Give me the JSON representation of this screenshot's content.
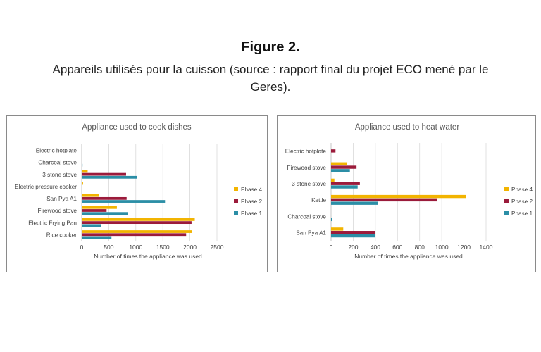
{
  "figure": {
    "title": "Figure 2.",
    "caption": "Appareils utilisés pour la cuisson (source : rapport final du projet ECO mené par le Geres)."
  },
  "colors": {
    "Phase 4": "#f2b400",
    "Phase 2": "#9b1b3b",
    "Phase 1": "#2b8ea6"
  },
  "chart_data": [
    {
      "type": "bar",
      "orientation": "horizontal",
      "title": "Appliance used to cook dishes",
      "xlabel": "Number of times the appliance was used",
      "ylabel": "",
      "categories": [
        "Electric hotplate",
        "Charcoal stove",
        "3 stone stove",
        "Electric pressure cooker",
        "San Pya A1",
        "Firewood stove",
        "Electric Frying Pan",
        "Rice cooker"
      ],
      "series": [
        {
          "name": "Phase 4",
          "values": [
            0,
            0,
            110,
            25,
            320,
            650,
            2090,
            2040
          ]
        },
        {
          "name": "Phase 2",
          "values": [
            0,
            5,
            820,
            0,
            830,
            460,
            2030,
            1930
          ]
        },
        {
          "name": "Phase 1",
          "values": [
            0,
            15,
            1020,
            0,
            1540,
            850,
            360,
            550
          ]
        }
      ],
      "xlim": [
        0,
        2500
      ],
      "xticks": [
        0,
        500,
        1000,
        1500,
        2000,
        2500
      ],
      "grid": true,
      "legend": "right"
    },
    {
      "type": "bar",
      "orientation": "horizontal",
      "title": "Appliance used to heat water",
      "xlabel": "Number of times the appliance was used",
      "ylabel": "",
      "categories": [
        "Electric hotplate",
        "Firewood stove",
        "3 stone stove",
        "Kettle",
        "Charcoal stove",
        "San Pya A1"
      ],
      "series": [
        {
          "name": "Phase 4",
          "values": [
            0,
            140,
            30,
            1220,
            0,
            110
          ]
        },
        {
          "name": "Phase 2",
          "values": [
            40,
            230,
            260,
            960,
            0,
            400
          ]
        },
        {
          "name": "Phase 1",
          "values": [
            0,
            170,
            240,
            420,
            10,
            400
          ]
        }
      ],
      "xlim": [
        0,
        1400
      ],
      "xticks": [
        0,
        200,
        400,
        600,
        800,
        1000,
        1200,
        1400
      ],
      "grid": true,
      "legend": "right"
    }
  ]
}
